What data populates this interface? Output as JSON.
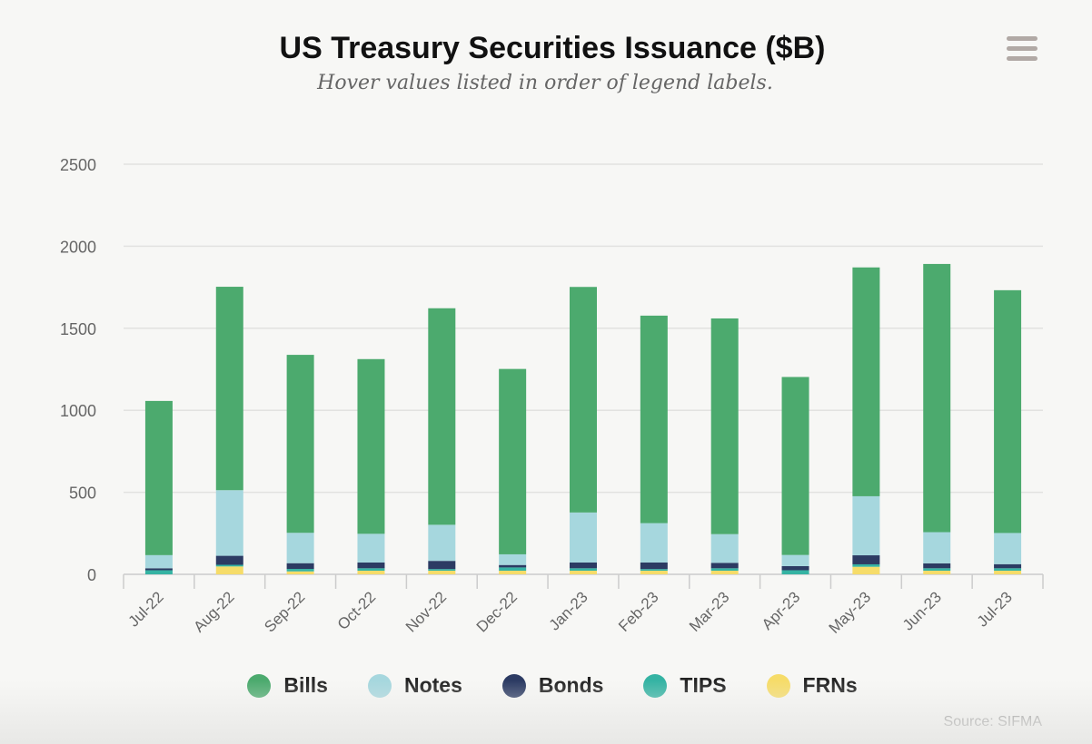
{
  "chart_data": {
    "type": "bar",
    "stacked": true,
    "title": "US Treasury Securities Issuance ($B)",
    "subtitle": "Hover values listed in order of legend labels.",
    "credit": "Source: SIFMA",
    "categories": [
      "Jul-22",
      "Aug-22",
      "Sep-22",
      "Oct-22",
      "Nov-22",
      "Dec-22",
      "Jan-23",
      "Feb-23",
      "Mar-23",
      "Apr-23",
      "May-23",
      "Jun-23",
      "Jul-23"
    ],
    "y_ticks": [
      "0",
      "500",
      "1000",
      "1500",
      "2000",
      "2500"
    ],
    "ylim": [
      0,
      2500
    ],
    "grid": true,
    "legend_position": "bottom-center",
    "series": [
      {
        "name": "Bills",
        "color": "#4caa6e",
        "values": [
          940,
          1240,
          1085,
          1065,
          1320,
          1130,
          1375,
          1265,
          1315,
          1085,
          1395,
          1635,
          1480
        ]
      },
      {
        "name": "Notes",
        "color": "#a6d7de",
        "values": [
          80,
          400,
          185,
          175,
          220,
          65,
          305,
          240,
          175,
          68,
          360,
          190,
          190
        ]
      },
      {
        "name": "Bonds",
        "color": "#2c3b63",
        "values": [
          12,
          55,
          35,
          35,
          50,
          15,
          35,
          40,
          33,
          25,
          55,
          30,
          25
        ]
      },
      {
        "name": "TIPS",
        "color": "#35b3a3",
        "values": [
          25,
          10,
          15,
          15,
          10,
          20,
          15,
          10,
          15,
          25,
          15,
          15,
          15
        ]
      },
      {
        "name": "FRNs",
        "color": "#f6dc69",
        "values": [
          0,
          48,
          18,
          22,
          22,
          22,
          22,
          22,
          22,
          0,
          46,
          22,
          22
        ]
      }
    ]
  },
  "menu": {
    "icon": "hamburger-menu-icon"
  }
}
